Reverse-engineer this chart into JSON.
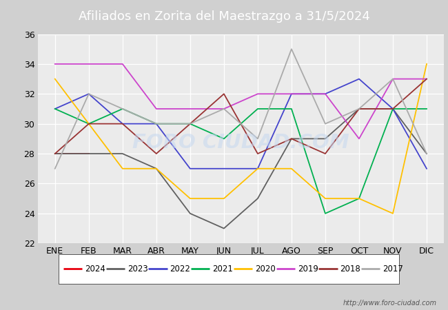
{
  "title": "Afiliados en Zorita del Maestrazgo a 31/5/2024",
  "title_bg_color": "#4472c4",
  "title_text_color": "#ffffff",
  "ylim": [
    22,
    36
  ],
  "yticks": [
    22,
    24,
    26,
    28,
    30,
    32,
    34,
    36
  ],
  "months": [
    "ENE",
    "FEB",
    "MAR",
    "ABR",
    "MAY",
    "JUN",
    "JUL",
    "AGO",
    "SEP",
    "OCT",
    "NOV",
    "DIC"
  ],
  "watermark": "FORO CIUDAD.COM",
  "url": "http://www.foro-ciudad.com",
  "series": {
    "2024": {
      "color": "#e8000d",
      "data": [
        28,
        28,
        null,
        null,
        null,
        null,
        null,
        null,
        null,
        null,
        null,
        null
      ]
    },
    "2023": {
      "color": "#606060",
      "data": [
        28,
        28,
        28,
        27,
        24,
        23,
        25,
        29,
        29,
        31,
        31,
        28
      ]
    },
    "2022": {
      "color": "#4444cc",
      "data": [
        31,
        32,
        30,
        30,
        27,
        27,
        27,
        32,
        32,
        33,
        31,
        27
      ]
    },
    "2021": {
      "color": "#00b050",
      "data": [
        31,
        30,
        31,
        30,
        30,
        29,
        31,
        31,
        24,
        25,
        31,
        31
      ]
    },
    "2020": {
      "color": "#ffc000",
      "data": [
        33,
        30,
        27,
        27,
        25,
        25,
        27,
        27,
        25,
        25,
        24,
        34
      ]
    },
    "2019": {
      "color": "#cc44cc",
      "data": [
        34,
        34,
        34,
        31,
        31,
        31,
        32,
        32,
        32,
        29,
        33,
        33
      ]
    },
    "2018": {
      "color": "#993333",
      "data": [
        28,
        30,
        30,
        28,
        30,
        32,
        28,
        29,
        28,
        31,
        31,
        33
      ]
    },
    "2017": {
      "color": "#aaaaaa",
      "data": [
        27,
        32,
        31,
        30,
        30,
        31,
        29,
        35,
        30,
        31,
        33,
        28
      ]
    }
  },
  "legend_order": [
    "2024",
    "2023",
    "2022",
    "2021",
    "2020",
    "2019",
    "2018",
    "2017"
  ],
  "plot_bg_color": "#ebebeb",
  "grid_color": "#ffffff",
  "title_fontsize": 13,
  "tick_fontsize": 9
}
